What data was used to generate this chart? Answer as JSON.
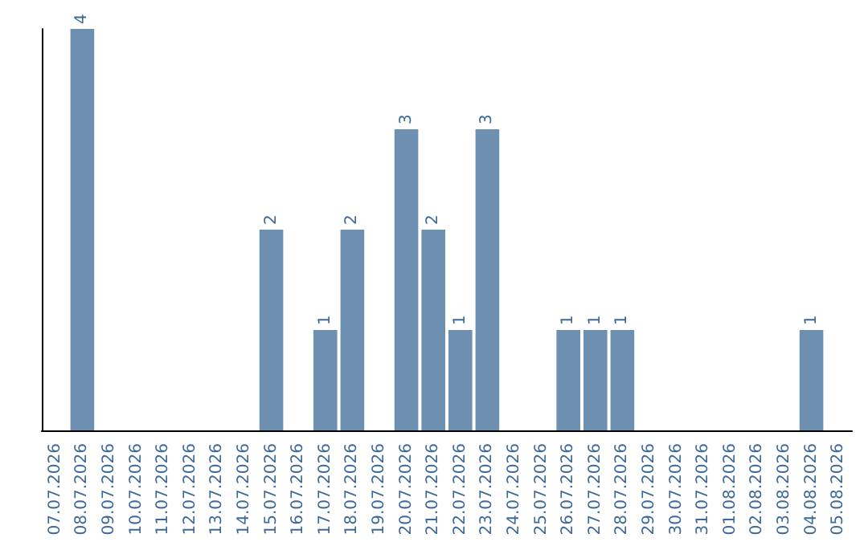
{
  "chart_data": {
    "type": "bar",
    "categories": [
      "07.07.2026",
      "08.07.2026",
      "09.07.2026",
      "10.07.2026",
      "11.07.2026",
      "12.07.2026",
      "13.07.2026",
      "14.07.2026",
      "15.07.2026",
      "16.07.2026",
      "17.07.2026",
      "18.07.2026",
      "19.07.2026",
      "20.07.2026",
      "21.07.2026",
      "22.07.2026",
      "23.07.2026",
      "24.07.2026",
      "25.07.2026",
      "26.07.2026",
      "27.07.2026",
      "28.07.2026",
      "29.07.2026",
      "30.07.2026",
      "31.07.2026",
      "01.08.2026",
      "02.08.2026",
      "03.08.2026",
      "04.08.2026",
      "05.08.2026"
    ],
    "values": [
      0,
      4,
      0,
      0,
      0,
      0,
      0,
      0,
      2,
      0,
      1,
      2,
      0,
      3,
      2,
      1,
      3,
      0,
      0,
      1,
      1,
      1,
      0,
      0,
      0,
      0,
      0,
      0,
      1,
      0
    ],
    "value_labels": [
      null,
      "4",
      null,
      null,
      null,
      null,
      null,
      null,
      "2",
      null,
      "1",
      "2",
      null,
      "3",
      "2",
      "1",
      "3",
      null,
      null,
      "1",
      "1",
      "1",
      null,
      null,
      null,
      null,
      null,
      null,
      "1",
      null
    ],
    "color": "#6d8fb0",
    "tick_labels": "x",
    "grid": false
  }
}
